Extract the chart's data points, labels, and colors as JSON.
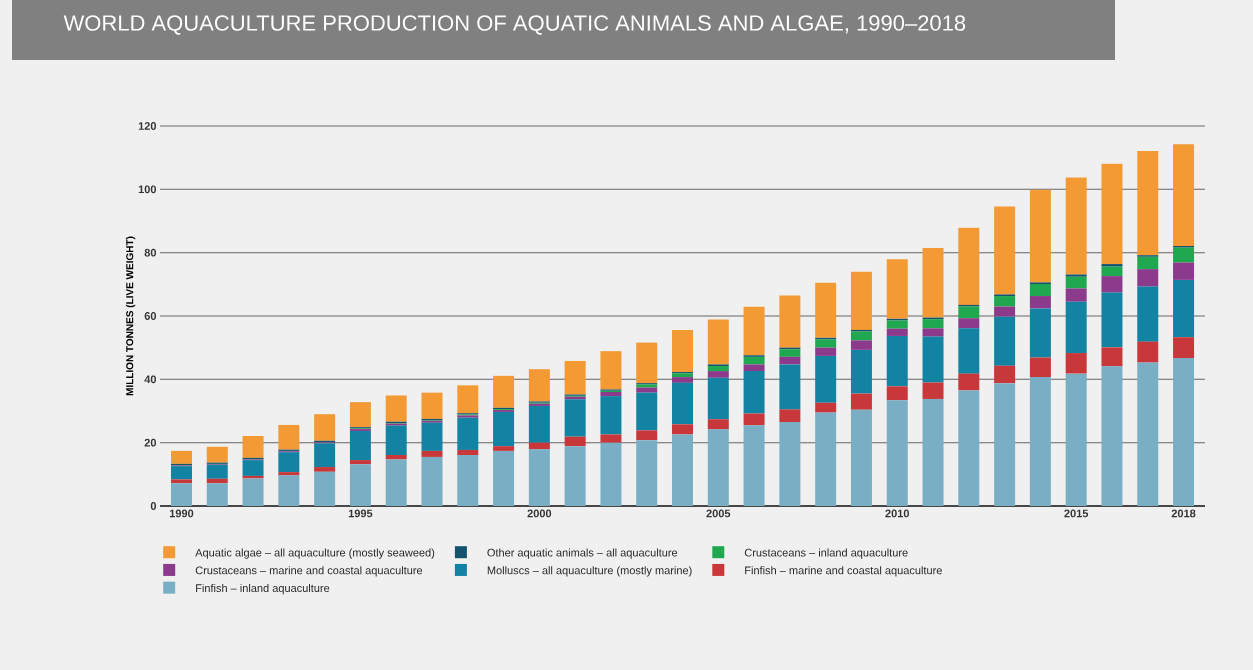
{
  "chart_data": {
    "type": "bar",
    "stacked": true,
    "title": "WORLD AQUACULTURE PRODUCTION OF AQUATIC ANIMALS AND ALGAE, 1990–2018",
    "ylabel": "MILLION TONNES (LIVE WEIGHT)",
    "categories": [
      "1990",
      null,
      null,
      null,
      null,
      "1995",
      null,
      null,
      null,
      null,
      "2000",
      null,
      null,
      null,
      null,
      "2005",
      null,
      null,
      null,
      null,
      "2010",
      null,
      null,
      null,
      null,
      "2015",
      null,
      null,
      "2018"
    ],
    "series": [
      {
        "name": "Finfish – inland aquaculture",
        "color": "#7aaec4",
        "values": [
          7.2,
          7.2,
          8.7,
          9.7,
          10.8,
          13.2,
          14.7,
          15.5,
          16.1,
          17.4,
          17.9,
          18.9,
          20.0,
          20.8,
          22.6,
          24.2,
          25.5,
          26.5,
          29.5,
          30.4,
          33.4,
          33.8,
          36.5,
          38.8,
          40.7,
          41.8,
          44.1,
          45.3,
          46.7
        ]
      },
      {
        "name": "Finfish – marine and coastal aquaculture",
        "color": "#c8383a",
        "values": [
          1.2,
          1.4,
          0.8,
          1.0,
          1.5,
          1.3,
          1.4,
          1.9,
          1.6,
          1.5,
          2.1,
          3.0,
          2.6,
          3.1,
          3.2,
          3.2,
          3.7,
          4.0,
          3.1,
          5.1,
          4.4,
          5.2,
          5.3,
          5.5,
          6.2,
          6.5,
          6.0,
          6.6,
          6.6
        ]
      },
      {
        "name": "Molluscs – all aquaculture (mostly marine)",
        "color": "#1283a3",
        "values": [
          4.2,
          4.4,
          5.0,
          6.3,
          7.5,
          9.2,
          9.3,
          8.9,
          10.2,
          10.8,
          11.6,
          11.8,
          12.1,
          11.9,
          13.1,
          13.1,
          13.4,
          14.2,
          14.8,
          13.8,
          15.9,
          14.5,
          14.3,
          15.5,
          15.5,
          16.2,
          17.3,
          17.4,
          18.1
        ]
      },
      {
        "name": "Crustaceans – marine and coastal aquaculture",
        "color": "#8b3a8c",
        "values": [
          0.2,
          0.2,
          0.2,
          0.3,
          0.3,
          0.6,
          0.6,
          0.6,
          0.7,
          0.6,
          0.7,
          0.8,
          1.3,
          1.6,
          1.8,
          2.1,
          2.1,
          2.4,
          2.6,
          3.0,
          2.3,
          2.6,
          3.2,
          3.2,
          3.9,
          4.2,
          5.2,
          5.5,
          5.5
        ]
      },
      {
        "name": "Crustaceans – inland aquaculture",
        "color": "#1fa84f",
        "values": [
          0.1,
          0.1,
          0.1,
          0.1,
          0.1,
          0.2,
          0.2,
          0.2,
          0.3,
          0.3,
          0.3,
          0.3,
          0.4,
          1.0,
          1.2,
          1.6,
          2.4,
          2.4,
          2.6,
          2.8,
          2.6,
          2.9,
          3.7,
          3.3,
          3.8,
          3.7,
          3.0,
          3.9,
          4.7
        ]
      },
      {
        "name": "Other aquatic animals – all aquaculture",
        "color": "#14526e",
        "values": [
          0.4,
          0.4,
          0.4,
          0.4,
          0.4,
          0.4,
          0.4,
          0.4,
          0.4,
          0.4,
          0.4,
          0.4,
          0.4,
          0.4,
          0.4,
          0.5,
          0.5,
          0.5,
          0.5,
          0.5,
          0.5,
          0.5,
          0.5,
          0.5,
          0.5,
          0.7,
          0.8,
          0.5,
          0.5
        ]
      },
      {
        "name": "Aquatic algae – all aquaculture (mostly seaweed)",
        "color": "#f39a34",
        "values": [
          4.1,
          5.0,
          6.9,
          7.8,
          8.4,
          7.9,
          8.3,
          8.3,
          8.8,
          10.1,
          10.2,
          10.6,
          12.1,
          12.8,
          13.3,
          14.2,
          15.3,
          16.5,
          17.4,
          18.4,
          18.8,
          22.0,
          24.4,
          27.8,
          29.3,
          30.6,
          31.7,
          32.9,
          32.1
        ]
      }
    ],
    "ylim": [
      0,
      120
    ],
    "yticks": [
      0,
      20,
      40,
      60,
      80,
      100,
      120
    ],
    "grid": "y",
    "legend": "bottom"
  }
}
